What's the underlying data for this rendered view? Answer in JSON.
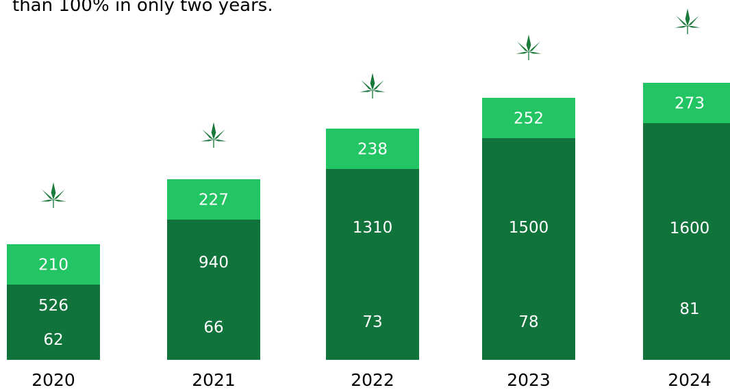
{
  "page": {
    "caption": "than 100% in only two years."
  },
  "colors": {
    "top_segment": "#23c463",
    "bottom_segment": "#0f733b",
    "leaf": "#1a7a3a",
    "year_text": "#000000",
    "value_text": "#ffffff"
  },
  "chart_data": {
    "type": "bar",
    "stacked": true,
    "title": "",
    "xlabel": "",
    "ylabel": "",
    "categories": [
      "2020",
      "2021",
      "2022",
      "2023",
      "2024"
    ],
    "series": [
      {
        "values": [
          62,
          66,
          73,
          78,
          81
        ]
      },
      {
        "values": [
          526,
          940,
          1310,
          1500,
          1600
        ]
      },
      {
        "values": [
          210,
          227,
          238,
          252,
          273
        ]
      }
    ],
    "decoration_icon": "cannabis-leaf-icon",
    "grid": false,
    "legend": "none"
  }
}
